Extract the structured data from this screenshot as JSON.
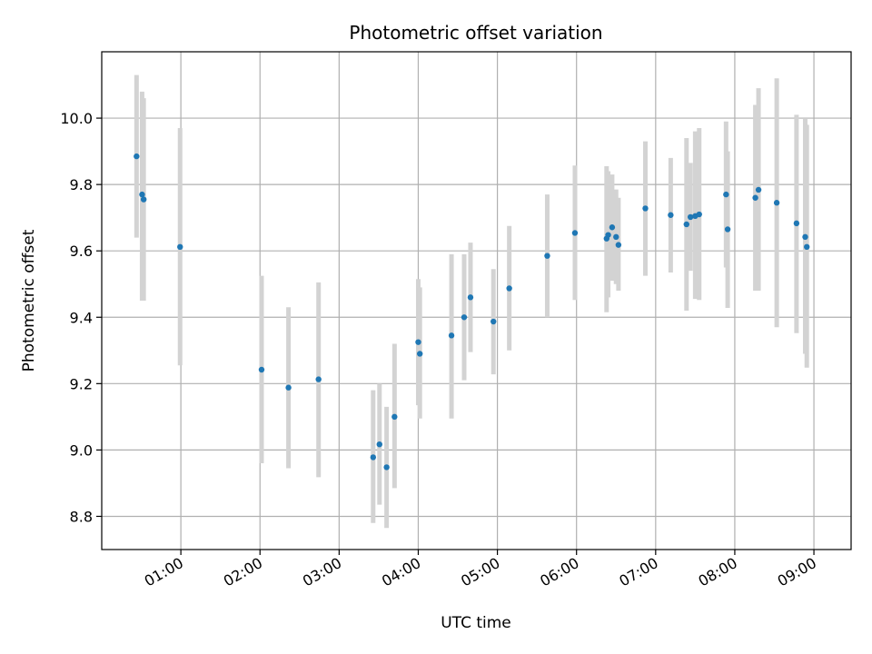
{
  "chart_data": {
    "type": "scatter",
    "title": "Photometric offset variation",
    "xlabel": "UTC time",
    "ylabel": "Photometric offset",
    "x_unit": "hours (UTC)",
    "xlim": [
      0.0,
      9.47
    ],
    "ylim": [
      8.7,
      10.2
    ],
    "grid": true,
    "x_ticks": [
      {
        "value": 1,
        "label": "01:00"
      },
      {
        "value": 2,
        "label": "02:00"
      },
      {
        "value": 3,
        "label": "03:00"
      },
      {
        "value": 4,
        "label": "04:00"
      },
      {
        "value": 5,
        "label": "05:00"
      },
      {
        "value": 6,
        "label": "06:00"
      },
      {
        "value": 7,
        "label": "07:00"
      },
      {
        "value": 8,
        "label": "08:00"
      },
      {
        "value": 9,
        "label": "09:00"
      }
    ],
    "y_ticks": [
      {
        "value": 8.8,
        "label": "8.8"
      },
      {
        "value": 9.0,
        "label": "9.0"
      },
      {
        "value": 9.2,
        "label": "9.2"
      },
      {
        "value": 9.4,
        "label": "9.4"
      },
      {
        "value": 9.6,
        "label": "9.6"
      },
      {
        "value": 9.8,
        "label": "9.8"
      },
      {
        "value": 10.0,
        "label": "10.0"
      }
    ],
    "colors": {
      "points": "#1f77b4",
      "errorbars": "#d3d3d3",
      "grid": "#b0b0b0"
    },
    "points": [
      {
        "x": 0.44,
        "y": 9.885,
        "ylo": 9.64,
        "yhi": 10.13
      },
      {
        "x": 0.51,
        "y": 9.77,
        "ylo": 9.45,
        "yhi": 10.08
      },
      {
        "x": 0.53,
        "y": 9.755,
        "ylo": 9.45,
        "yhi": 10.06
      },
      {
        "x": 0.99,
        "y": 9.612,
        "ylo": 9.255,
        "yhi": 9.97
      },
      {
        "x": 2.02,
        "y": 9.242,
        "ylo": 8.96,
        "yhi": 9.525
      },
      {
        "x": 2.36,
        "y": 9.188,
        "ylo": 8.945,
        "yhi": 9.43
      },
      {
        "x": 2.74,
        "y": 9.213,
        "ylo": 8.918,
        "yhi": 9.505
      },
      {
        "x": 3.43,
        "y": 8.978,
        "ylo": 8.78,
        "yhi": 9.18
      },
      {
        "x": 3.51,
        "y": 9.017,
        "ylo": 8.835,
        "yhi": 9.2
      },
      {
        "x": 3.6,
        "y": 8.948,
        "ylo": 8.765,
        "yhi": 9.13
      },
      {
        "x": 3.7,
        "y": 9.1,
        "ylo": 8.885,
        "yhi": 9.32
      },
      {
        "x": 4.0,
        "y": 9.325,
        "ylo": 9.135,
        "yhi": 9.515
      },
      {
        "x": 4.02,
        "y": 9.29,
        "ylo": 9.095,
        "yhi": 9.49
      },
      {
        "x": 4.42,
        "y": 9.345,
        "ylo": 9.095,
        "yhi": 9.59
      },
      {
        "x": 4.58,
        "y": 9.4,
        "ylo": 9.21,
        "yhi": 9.59
      },
      {
        "x": 4.66,
        "y": 9.46,
        "ylo": 9.295,
        "yhi": 9.625
      },
      {
        "x": 4.95,
        "y": 9.387,
        "ylo": 9.228,
        "yhi": 9.545
      },
      {
        "x": 5.15,
        "y": 9.487,
        "ylo": 9.3,
        "yhi": 9.675
      },
      {
        "x": 5.63,
        "y": 9.585,
        "ylo": 9.4,
        "yhi": 9.77
      },
      {
        "x": 5.98,
        "y": 9.654,
        "ylo": 9.452,
        "yhi": 9.857
      },
      {
        "x": 6.38,
        "y": 9.637,
        "ylo": 9.415,
        "yhi": 9.855
      },
      {
        "x": 6.4,
        "y": 9.648,
        "ylo": 9.46,
        "yhi": 9.84
      },
      {
        "x": 6.45,
        "y": 9.671,
        "ylo": 9.51,
        "yhi": 9.83
      },
      {
        "x": 6.5,
        "y": 9.642,
        "ylo": 9.5,
        "yhi": 9.785
      },
      {
        "x": 6.53,
        "y": 9.618,
        "ylo": 9.48,
        "yhi": 9.76
      },
      {
        "x": 6.87,
        "y": 9.728,
        "ylo": 9.525,
        "yhi": 9.93
      },
      {
        "x": 7.19,
        "y": 9.708,
        "ylo": 9.535,
        "yhi": 9.88
      },
      {
        "x": 7.39,
        "y": 9.68,
        "ylo": 9.42,
        "yhi": 9.94
      },
      {
        "x": 7.44,
        "y": 9.702,
        "ylo": 9.54,
        "yhi": 9.865
      },
      {
        "x": 7.5,
        "y": 9.705,
        "ylo": 9.455,
        "yhi": 9.96
      },
      {
        "x": 7.55,
        "y": 9.71,
        "ylo": 9.452,
        "yhi": 9.97
      },
      {
        "x": 7.89,
        "y": 9.77,
        "ylo": 9.55,
        "yhi": 9.99
      },
      {
        "x": 7.91,
        "y": 9.665,
        "ylo": 9.428,
        "yhi": 9.9
      },
      {
        "x": 8.26,
        "y": 9.76,
        "ylo": 9.48,
        "yhi": 10.04
      },
      {
        "x": 8.3,
        "y": 9.784,
        "ylo": 9.48,
        "yhi": 10.09
      },
      {
        "x": 8.53,
        "y": 9.745,
        "ylo": 9.37,
        "yhi": 10.12
      },
      {
        "x": 8.78,
        "y": 9.683,
        "ylo": 9.352,
        "yhi": 10.01
      },
      {
        "x": 8.89,
        "y": 9.642,
        "ylo": 9.29,
        "yhi": 10.0
      },
      {
        "x": 8.91,
        "y": 9.612,
        "ylo": 9.248,
        "yhi": 9.98
      }
    ]
  }
}
